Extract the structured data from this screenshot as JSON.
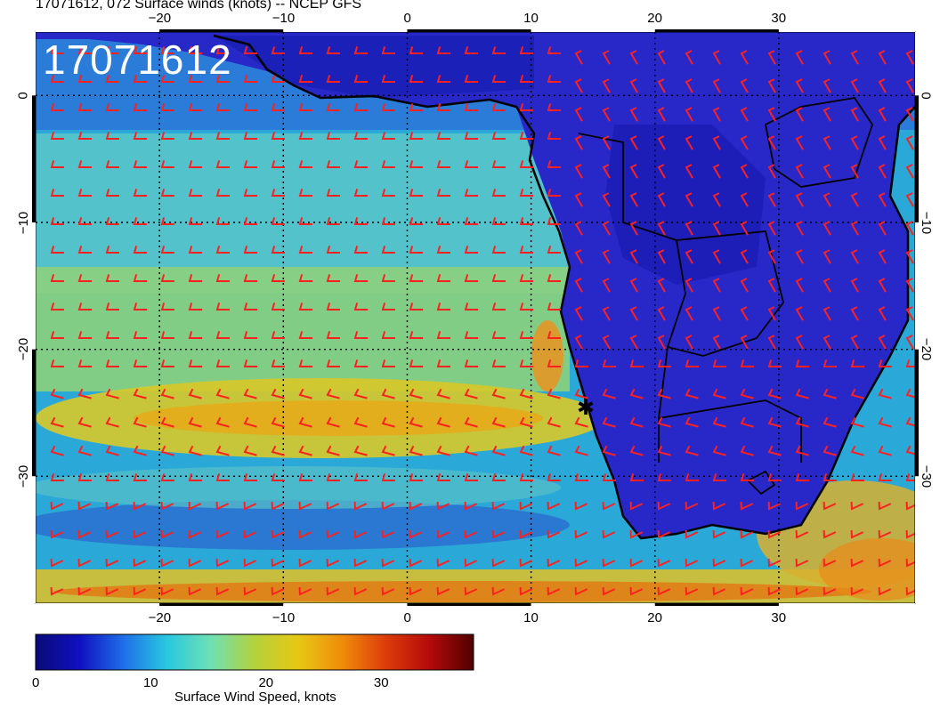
{
  "title": "17071612, 072 Surface winds (knots) -- NCEP GFS",
  "stamp": "17071612",
  "map": {
    "lon_range": [
      -30,
      41
    ],
    "lat_range": [
      -40,
      5
    ],
    "lon_ticks": [
      -20,
      -10,
      0,
      10,
      20,
      30
    ],
    "lat_ticks": [
      0,
      -10,
      -20,
      -30
    ],
    "lon_tick_labels": [
      "−20",
      "−10",
      "0",
      "10",
      "20",
      "30"
    ],
    "lat_tick_labels": [
      "0",
      "−10",
      "−20",
      "−30"
    ],
    "grid": true,
    "barb_color": "#ff2020",
    "coast_color": "#000000",
    "marker_symbol": "✱"
  },
  "colorbar": {
    "label": "Surface Wind Speed, knots",
    "ticks": [
      0,
      10,
      20,
      30
    ],
    "tick_labels": [
      "0",
      "10",
      "20",
      "30"
    ],
    "range": [
      0,
      38
    ],
    "colors": [
      "#0a0a78",
      "#1010c0",
      "#1e6ee8",
      "#28c8e0",
      "#6ee0b4",
      "#b4d23c",
      "#e6c814",
      "#f08c0a",
      "#dc3c0a",
      "#b40a0a",
      "#500000"
    ]
  }
}
